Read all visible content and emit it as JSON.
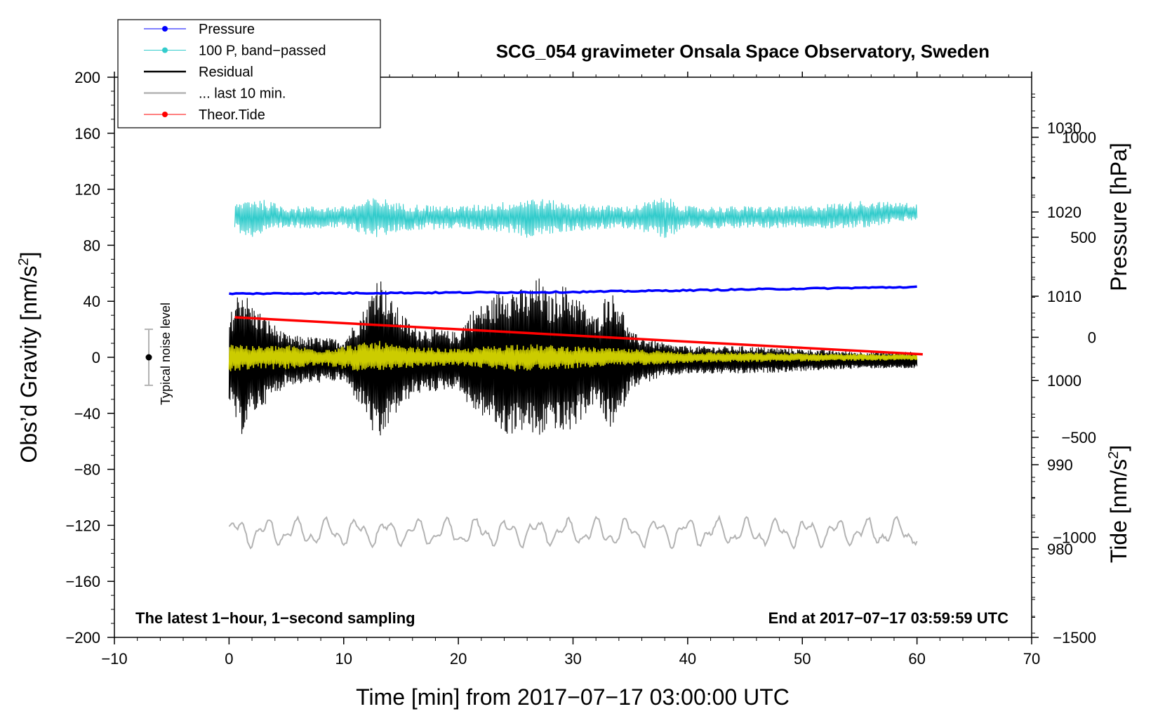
{
  "chart_data": {
    "type": "line",
    "title": "SCG_054 gravimeter Onsala Space Observatory, Sweden",
    "xlabel": "Time [min] from 2017−07−17 03:00:00 UTC",
    "ylabel": "Obs’d Gravity [nm/s²]",
    "ylabel_parts": {
      "main": "Obs’d Gravity [nm/s",
      "sup": "2",
      "end": "]"
    },
    "xlim": [
      -10,
      70
    ],
    "ylim": [
      -200,
      200
    ],
    "x_ticks": [
      -10,
      0,
      10,
      20,
      30,
      40,
      50,
      60,
      70
    ],
    "x_tick_labels": [
      "−10",
      "0",
      "10",
      "20",
      "30",
      "40",
      "50",
      "60",
      "70"
    ],
    "y_ticks": [
      -200,
      -160,
      -120,
      -80,
      -40,
      0,
      40,
      80,
      120,
      160,
      200
    ],
    "y_tick_labels": [
      "−200",
      "−160",
      "−120",
      "−80",
      "−40",
      "0",
      "40",
      "80",
      "120",
      "160",
      "200"
    ],
    "pressure_axis": {
      "label": "Pressure [hPa]",
      "ticks": [
        980,
        990,
        1000,
        1010,
        1020,
        1030
      ],
      "tick_labels": [
        "980",
        "990",
        "1000",
        "1010",
        "1020",
        "1030"
      ],
      "range": [
        969.5,
        1036
      ]
    },
    "tide_axis": {
      "label_main": "Tide [nm/s",
      "label_sup": "2",
      "label_end": "]",
      "ticks": [
        -1500,
        -1000,
        -500,
        0,
        500,
        1000
      ],
      "tick_labels": [
        "−1500",
        "−1000",
        "−500",
        "0",
        "500",
        "1000"
      ],
      "range": [
        -1500,
        1300
      ]
    },
    "legend": [
      {
        "label": "Pressure",
        "color": "#0000ff",
        "marker": true
      },
      {
        "label": "100 P, band−passed",
        "color": "#33cccc",
        "marker": true
      },
      {
        "label": "Residual",
        "color": "#000000",
        "marker": false
      },
      {
        "label": "... last 10 min.",
        "color": "#b3b3b3",
        "marker": false
      },
      {
        "label": "Theor.Tide",
        "color": "#ff0000",
        "marker": true
      }
    ],
    "series": [
      {
        "name": "Pressure",
        "axis": "pressure",
        "color": "#0000ff",
        "x": [
          0,
          30,
          60
        ],
        "values": [
          1010.3,
          1010.5,
          1011.1
        ]
      },
      {
        "name": "Theor.Tide",
        "axis": "tide",
        "color": "#ff0000",
        "x": [
          0.5,
          60.5
        ],
        "values": [
          100,
          -85
        ]
      },
      {
        "name": "100 P, band−passed",
        "axis": "gravity",
        "color": "#33cccc",
        "x_range": [
          0.5,
          60
        ],
        "center": 100,
        "envelope_x": [
          0.5,
          2,
          5,
          10,
          13,
          15,
          20,
          25,
          26,
          30,
          35,
          38,
          40,
          45,
          50,
          55,
          60
        ],
        "envelope": [
          10,
          15,
          8,
          8,
          15,
          10,
          8,
          12,
          15,
          10,
          8,
          15,
          8,
          8,
          8,
          10,
          6
        ]
      },
      {
        "name": "Residual",
        "axis": "gravity",
        "color": "#000000",
        "x_range": [
          0,
          60
        ],
        "center": -2,
        "envelope_x": [
          0,
          1,
          2,
          5,
          10,
          12,
          13,
          14,
          16,
          20,
          21,
          23,
          24,
          26,
          27,
          28,
          29,
          30,
          32,
          33,
          34,
          35,
          38,
          40,
          45,
          50,
          55,
          60
        ],
        "envelope": [
          30,
          55,
          40,
          18,
          15,
          40,
          65,
          45,
          25,
          20,
          35,
          45,
          55,
          50,
          60,
          45,
          55,
          50,
          30,
          50,
          45,
          20,
          12,
          10,
          10,
          8,
          6,
          6
        ]
      },
      {
        "name": "yellow band",
        "axis": "gravity",
        "color": "#cccc00",
        "x_range": [
          0,
          60
        ],
        "center": 0,
        "envelope_x": [
          0,
          2,
          5,
          8,
          13,
          15,
          20,
          25,
          30,
          40,
          50,
          60
        ],
        "envelope": [
          12,
          8,
          9,
          6,
          12,
          8,
          6,
          10,
          8,
          4,
          3,
          2
        ]
      },
      {
        "name": "... last 10 min.",
        "axis": "gravity",
        "color": "#b3b3b3",
        "x_range": [
          0,
          60
        ],
        "center": -125,
        "amplitude": 9
      }
    ],
    "annotations": {
      "noise_label": "Typical noise level",
      "noise_bar": {
        "x": -7,
        "y": 0,
        "err": 20
      },
      "bottom_left": "The latest 1−hour, 1−second sampling",
      "bottom_right": "End at 2017−07−17 03:59:59 UTC"
    }
  }
}
